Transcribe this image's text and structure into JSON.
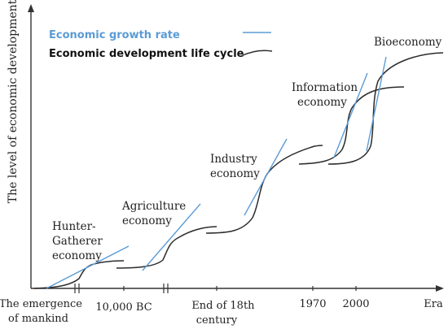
{
  "colors": {
    "growth": "#5b9bd5",
    "cycle": "#2b2b2b",
    "axis": "#333333"
  },
  "legend": {
    "growth_label": "Economic growth rate",
    "cycle_label": "Economic development life cycle"
  },
  "y_axis_label": "The level of economic development",
  "x_axis": {
    "ticks": [
      {
        "label_lines": [
          "The emergence",
          "of mankind"
        ]
      },
      {
        "label_lines": [
          "10,000 BC"
        ]
      },
      {
        "label_lines": [
          "End of 18th",
          "century"
        ]
      },
      {
        "label_lines": [
          "1970"
        ]
      },
      {
        "label_lines": [
          "2000"
        ]
      },
      {
        "label_lines": [
          "Era"
        ]
      }
    ]
  },
  "stages": [
    {
      "name_lines": [
        "Hunter-",
        "Gatherer",
        "economy"
      ]
    },
    {
      "name_lines": [
        "Agriculture",
        "economy"
      ]
    },
    {
      "name_lines": [
        "Industry",
        "economy"
      ]
    },
    {
      "name_lines": [
        "Information",
        "economy"
      ]
    },
    {
      "name_lines": [
        "Bioeconomy"
      ]
    }
  ]
}
